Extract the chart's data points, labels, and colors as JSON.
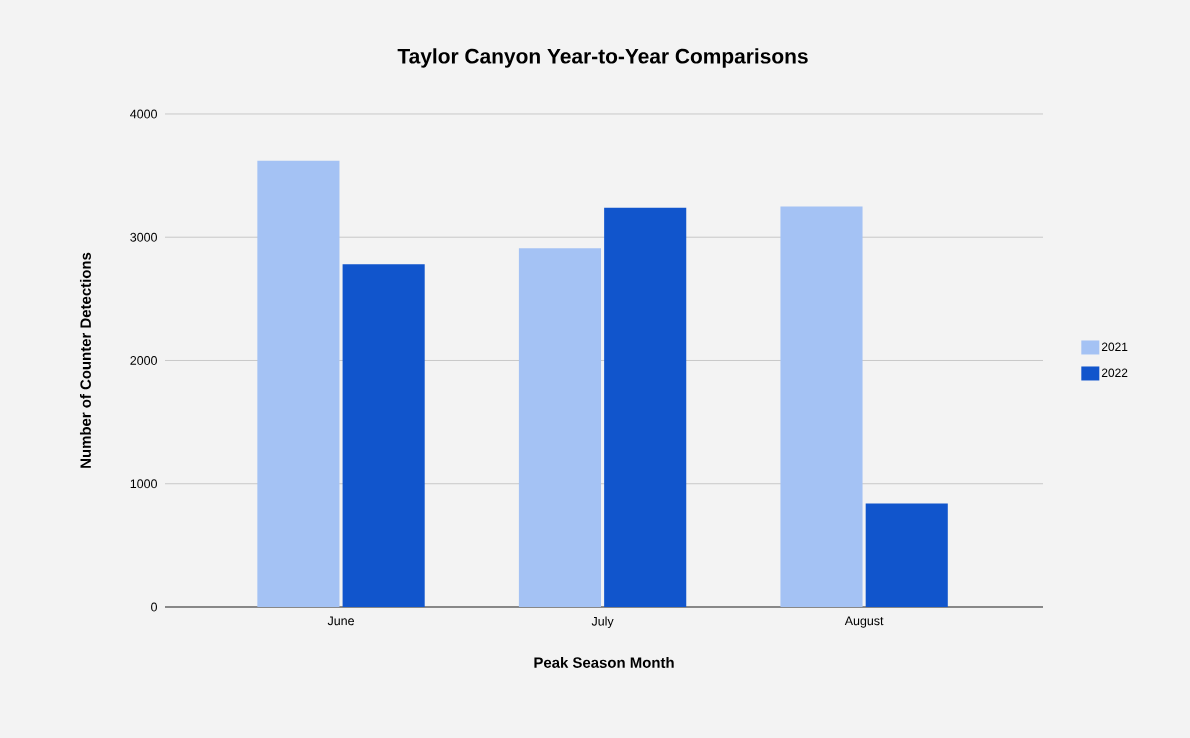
{
  "chart_data": {
    "type": "bar",
    "title": "Taylor Canyon Year-to-Year Comparisons",
    "xlabel": "Peak Season Month",
    "ylabel": "Number of Counter Detections",
    "categories": [
      "June",
      "July",
      "August"
    ],
    "series": [
      {
        "name": "2021",
        "color": "#a4c2f4",
        "values": [
          3620,
          2910,
          3250
        ]
      },
      {
        "name": "2022",
        "color": "#1155cc",
        "values": [
          2780,
          3240,
          840
        ]
      }
    ],
    "ylim": [
      0,
      4000
    ],
    "yticks": [
      0,
      1000,
      2000,
      3000,
      4000
    ],
    "grid": "y",
    "legend": "right"
  }
}
